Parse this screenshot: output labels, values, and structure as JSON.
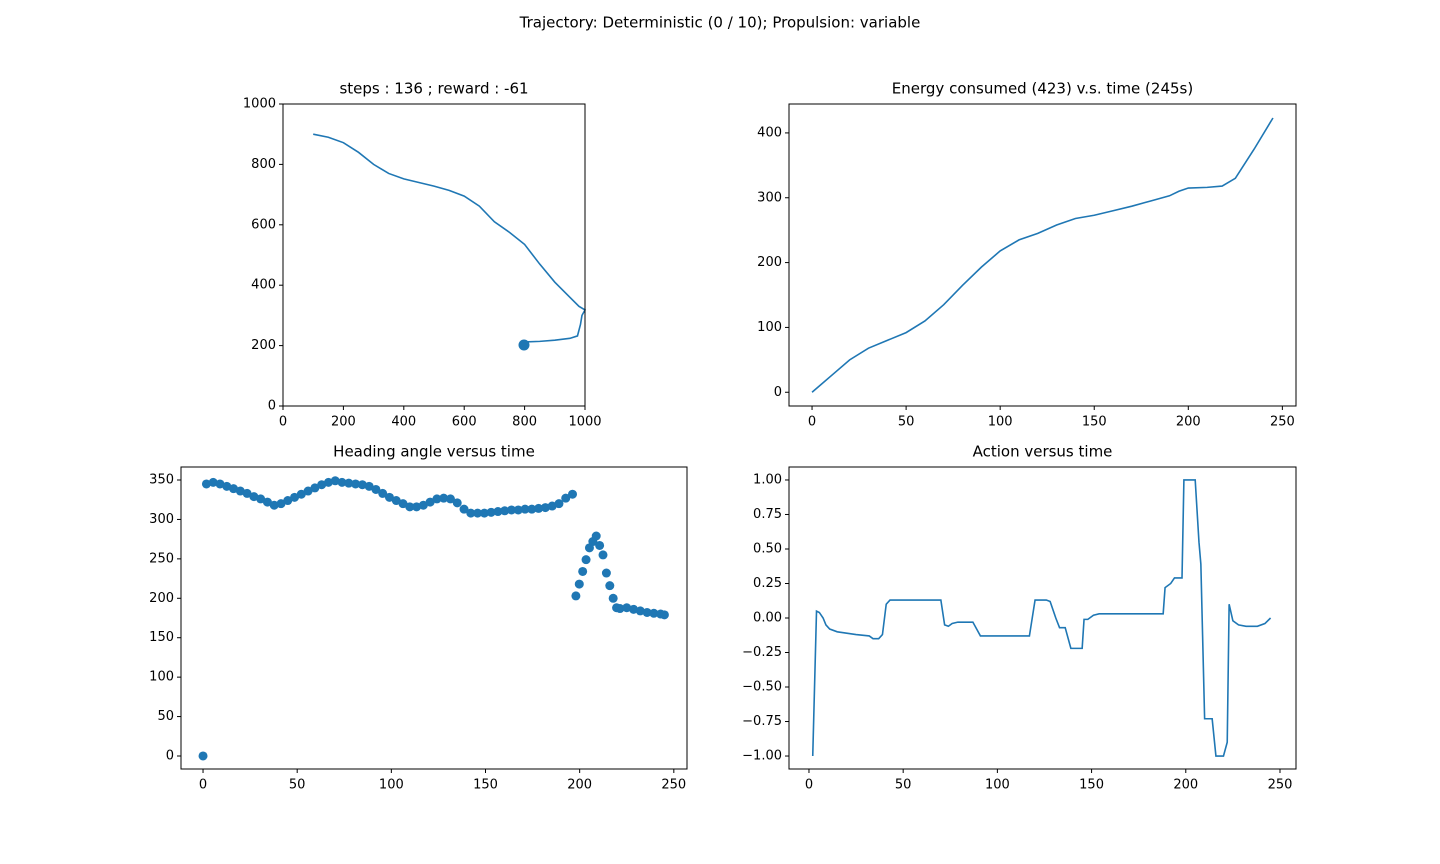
{
  "title": "Trajectory: Deterministic (0 / 10); Propulsion: variable",
  "chart_data": [
    {
      "type": "line",
      "title": "steps : 136 ; reward : -61",
      "xlim": [
        0,
        1000
      ],
      "ylim": [
        0,
        1000
      ],
      "xticks": [
        0,
        200,
        400,
        600,
        800,
        1000
      ],
      "yticks": [
        0,
        200,
        400,
        600,
        800,
        1000
      ],
      "series": [
        {
          "mode": "line",
          "color": "#1f77b4",
          "x": [
            100,
            150,
            200,
            250,
            300,
            350,
            400,
            450,
            500,
            550,
            600,
            650,
            700,
            750,
            800,
            850,
            900,
            950,
            980,
            1000,
            990,
            985,
            975,
            950,
            900,
            850,
            800
          ],
          "values": [
            900,
            890,
            872,
            840,
            800,
            770,
            752,
            740,
            728,
            714,
            695,
            662,
            610,
            575,
            535,
            470,
            410,
            360,
            330,
            318,
            300,
            270,
            232,
            224,
            218,
            214,
            212
          ]
        },
        {
          "mode": "marker",
          "color": "#1f77b4",
          "x": [
            798
          ],
          "values": [
            202
          ]
        }
      ]
    },
    {
      "type": "line",
      "title": "Energy consumed (423) v.s. time (245s)",
      "xlim": [
        -12.25,
        257.25
      ],
      "ylim": [
        -21.2,
        444.6
      ],
      "xticks": [
        0,
        50,
        100,
        150,
        200,
        250
      ],
      "yticks": [
        0,
        100,
        200,
        300,
        400
      ],
      "series": [
        {
          "mode": "line",
          "color": "#1f77b4",
          "x": [
            0,
            10,
            20,
            30,
            40,
            50,
            60,
            70,
            80,
            90,
            100,
            110,
            120,
            130,
            140,
            150,
            160,
            170,
            180,
            190,
            195,
            200,
            210,
            218,
            225,
            235,
            245
          ],
          "values": [
            0,
            25,
            50,
            68,
            80,
            92,
            110,
            135,
            165,
            193,
            218,
            235,
            245,
            258,
            268,
            273,
            280,
            287,
            295,
            303,
            310,
            315,
            316,
            318,
            330,
            375,
            423
          ]
        }
      ]
    },
    {
      "type": "scatter",
      "title": "Heading angle versus time",
      "xlim": [
        -11.7,
        257
      ],
      "ylim": [
        -16.5,
        366.5
      ],
      "xticks": [
        0,
        50,
        100,
        150,
        200,
        250
      ],
      "yticks": [
        0,
        50,
        100,
        150,
        200,
        250,
        300,
        350
      ],
      "series": [
        {
          "mode": "marker",
          "color": "#1f77b4",
          "x": [
            0,
            1.8,
            5.4,
            9,
            12.6,
            16.2,
            19.8,
            23.4,
            27,
            30.6,
            34.2,
            37.8,
            41.4,
            45,
            48.6,
            52.2,
            55.8,
            59.4,
            63,
            66.6,
            70.2,
            73.8,
            77.4,
            81,
            84.6,
            88.2,
            91.8,
            95.4,
            99,
            102.6,
            106.2,
            109.8,
            113.4,
            117,
            120.6,
            124.2,
            127.8,
            131.4,
            135,
            138.6,
            142.2,
            145.8,
            149.4,
            153,
            156.6,
            160.2,
            163.8,
            167.4,
            171,
            174.6,
            178.2,
            181.8,
            185.4,
            189,
            192.6,
            196.2,
            198,
            199.8,
            201.6,
            203.4,
            205.2,
            207,
            208.8,
            210.6,
            212.4,
            214.2,
            216,
            217.8,
            219.6,
            221.4,
            225,
            228.6,
            232.2,
            235.8,
            239.4,
            243,
            245
          ],
          "values": [
            0,
            345,
            347,
            345,
            342,
            339,
            336,
            333,
            329,
            326,
            322,
            318,
            320,
            324,
            328,
            332,
            336,
            340,
            344,
            347,
            349,
            347,
            346,
            345,
            344,
            342,
            338,
            333,
            328,
            324,
            320,
            316,
            316,
            318,
            322,
            326,
            327,
            326,
            321,
            313,
            308,
            308,
            308,
            309,
            310,
            311,
            312,
            312,
            313,
            313,
            314,
            315,
            317,
            320,
            327,
            332,
            203,
            218,
            234,
            249,
            264,
            272,
            279,
            267,
            255,
            232,
            216,
            200,
            188,
            187,
            188,
            186,
            184,
            182,
            181,
            180,
            179
          ]
        }
      ]
    },
    {
      "type": "line",
      "title": "Action versus time",
      "xlim": [
        -10.6,
        258.5
      ],
      "ylim": [
        -1.094,
        1.094
      ],
      "xticks": [
        0,
        50,
        100,
        150,
        200,
        250
      ],
      "yticks": [
        {
          "value": -1,
          "label": "−1.00"
        },
        {
          "value": -0.75,
          "label": "−0.75"
        },
        {
          "value": -0.5,
          "label": "−0.50"
        },
        {
          "value": -0.25,
          "label": "−0.25"
        },
        {
          "value": 0,
          "label": "0.00"
        },
        {
          "value": 0.25,
          "label": "0.25"
        },
        {
          "value": 0.5,
          "label": "0.50"
        },
        {
          "value": 0.75,
          "label": "0.75"
        },
        {
          "value": 1,
          "label": "1.00"
        }
      ],
      "series": [
        {
          "mode": "line",
          "color": "#1f77b4",
          "x": [
            2,
            4,
            5.5,
            7.5,
            9,
            11,
            15,
            20,
            25,
            32,
            34,
            37,
            39,
            41,
            43,
            70,
            72,
            74,
            76,
            79,
            87,
            91,
            117,
            120,
            126,
            128,
            131,
            133,
            136,
            139,
            145,
            146,
            148,
            151,
            154,
            188,
            189,
            192,
            194,
            198,
            199,
            205,
            207,
            208,
            210,
            214,
            216,
            220,
            222,
            223,
            225,
            228,
            232,
            238,
            242,
            245
          ],
          "values": [
            -1,
            0.05,
            0.04,
            0,
            -0.05,
            -0.08,
            -0.1,
            -0.11,
            -0.12,
            -0.13,
            -0.15,
            -0.15,
            -0.12,
            0.1,
            0.13,
            0.13,
            -0.05,
            -0.06,
            -0.04,
            -0.03,
            -0.03,
            -0.13,
            -0.13,
            0.13,
            0.13,
            0.12,
            0,
            -0.07,
            -0.07,
            -0.22,
            -0.22,
            -0.01,
            -0.01,
            0.02,
            0.03,
            0.03,
            0.22,
            0.25,
            0.29,
            0.29,
            1,
            1,
            0.55,
            0.39,
            -0.73,
            -0.73,
            -1,
            -1,
            -0.9,
            0.1,
            -0.02,
            -0.05,
            -0.06,
            -0.06,
            -0.04,
            0
          ]
        }
      ]
    }
  ]
}
